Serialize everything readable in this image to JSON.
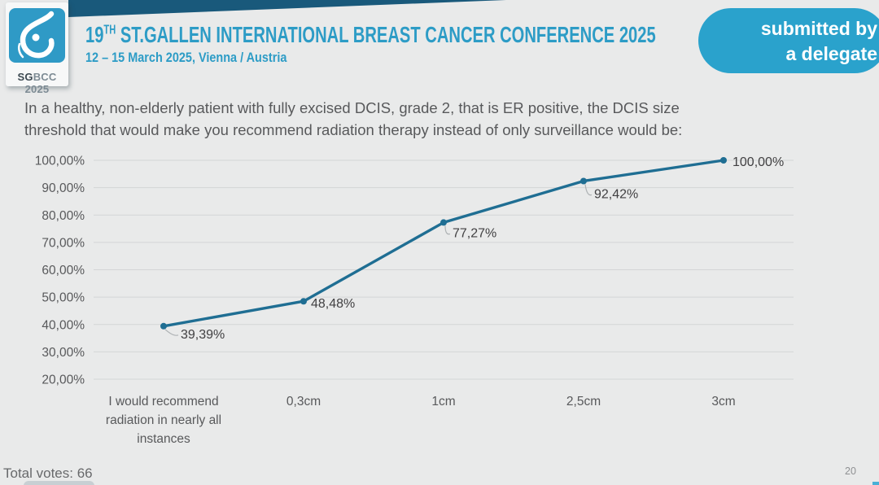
{
  "colors": {
    "accent": "#2d9cc6",
    "badge_blue": "#2aa2cc",
    "wedge": "#19597b",
    "logo_blue": "#2f9ac6",
    "line": "#1f6e93",
    "grid": "#d3d5d6",
    "background": "#e9eaea"
  },
  "header": {
    "logo": {
      "brand_bold": "SG",
      "brand_rest": "BCC 2025"
    },
    "title_num": "19",
    "title_sup": "TH",
    "title_rest": " ST.GALLEN INTERNATIONAL BREAST CANCER CONFERENCE 2025",
    "subtitle": "12 – 15 March 2025, Vienna / Austria"
  },
  "badge": {
    "line1": "submitted by",
    "line2": "a delegate"
  },
  "question_lines": [
    "In a healthy, non-elderly patient with fully excised DCIS, grade 2, that is ER positive, the DCIS size",
    "threshold that would make you recommend radiation therapy instead of only surveillance would be:"
  ],
  "chart_data": {
    "type": "line",
    "title": "In a healthy, non-elderly patient with fully excised DCIS, grade 2, that is ER positive, the DCIS size threshold that would make you recommend radiation therapy instead of only surveillance would be:",
    "categories": [
      "I would recommend radiation in nearly all instances",
      "0,3cm",
      "1cm",
      "2,5cm",
      "3cm"
    ],
    "values": [
      39.39,
      48.48,
      77.27,
      92.42,
      100.0
    ],
    "value_labels": [
      "39,39%",
      "48,48%",
      "77,27%",
      "92,42%",
      "100,00%"
    ],
    "y_ticks": [
      "100,00%",
      "90,00%",
      "80,00%",
      "70,00%",
      "60,00%",
      "50,00%",
      "40,00%",
      "30,00%",
      "20,00%"
    ],
    "y_tick_step": 10,
    "ylim": [
      20,
      100
    ],
    "grid": true,
    "legend": false,
    "line_color": "#1f6e93",
    "grid_color": "#d3d5d6",
    "total_votes": 66
  },
  "footer": {
    "total_votes": "Total votes: 66",
    "page_number": "20"
  }
}
